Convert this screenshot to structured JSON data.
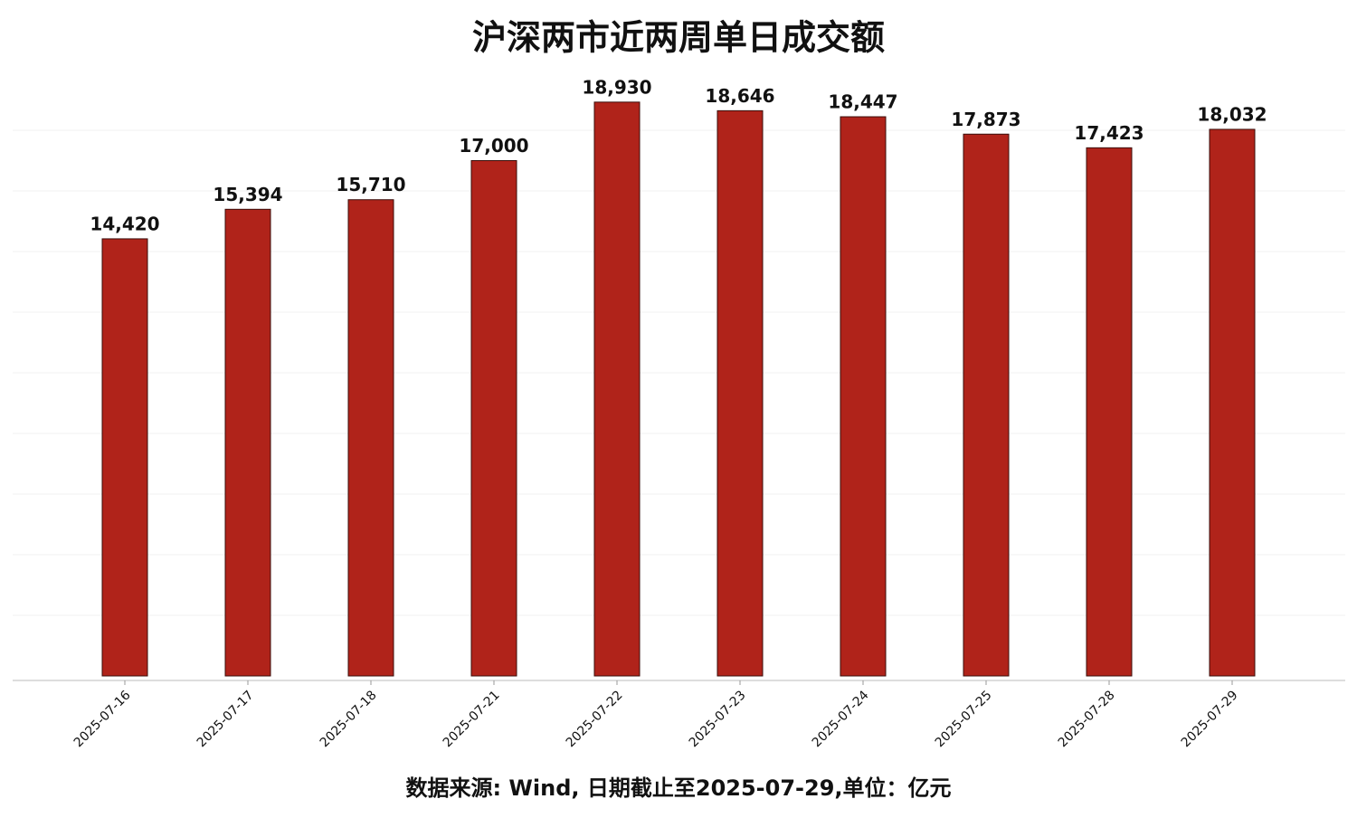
{
  "chart_data": {
    "type": "bar",
    "title": "沪深两市近两周单日成交额",
    "source": "数据来源: Wind, 日期截止至2025-07-29,单位：亿元",
    "categories": [
      "2025-07-16",
      "2025-07-17",
      "2025-07-18",
      "2025-07-21",
      "2025-07-22",
      "2025-07-23",
      "2025-07-24",
      "2025-07-25",
      "2025-07-28",
      "2025-07-29"
    ],
    "values": [
      14420,
      15394,
      15710,
      17000,
      18930,
      18646,
      18447,
      17873,
      17423,
      18032
    ],
    "value_labels": [
      "14,420",
      "15,394",
      "15,710",
      "17,000",
      "18,930",
      "18,646",
      "18,447",
      "17,873",
      "17,423",
      "18,032"
    ],
    "color": "#b0231a",
    "ylim": [
      0,
      20000
    ],
    "yticks": [
      2000,
      4000,
      6000,
      8000,
      10000,
      12000,
      14000,
      16000,
      18000
    ],
    "grid": true
  }
}
